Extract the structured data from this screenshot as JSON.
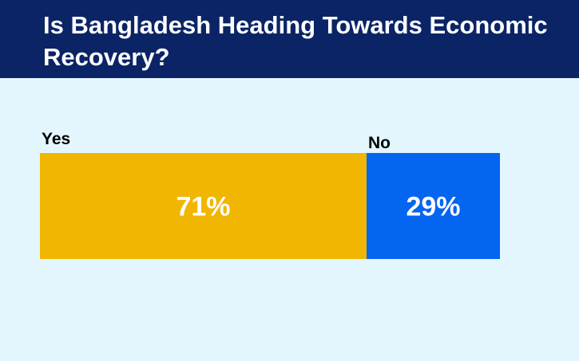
{
  "header": {
    "title": "Is Bangladesh Heading Towards Economic Recovery?"
  },
  "colors": {
    "header_bg": "#0b2466",
    "background": "#e3f6fd",
    "yes": "#f1b601",
    "no": "#0465f0"
  },
  "chart_data": {
    "type": "bar",
    "orientation": "horizontal",
    "stacked": true,
    "title": "Is Bangladesh Heading Towards Economic Recovery?",
    "categories": [
      "Yes",
      "No"
    ],
    "values": [
      71,
      29
    ],
    "data_labels": [
      "71%",
      "29%"
    ],
    "unit": "%",
    "total": 100,
    "legend": "none",
    "grid": false
  }
}
